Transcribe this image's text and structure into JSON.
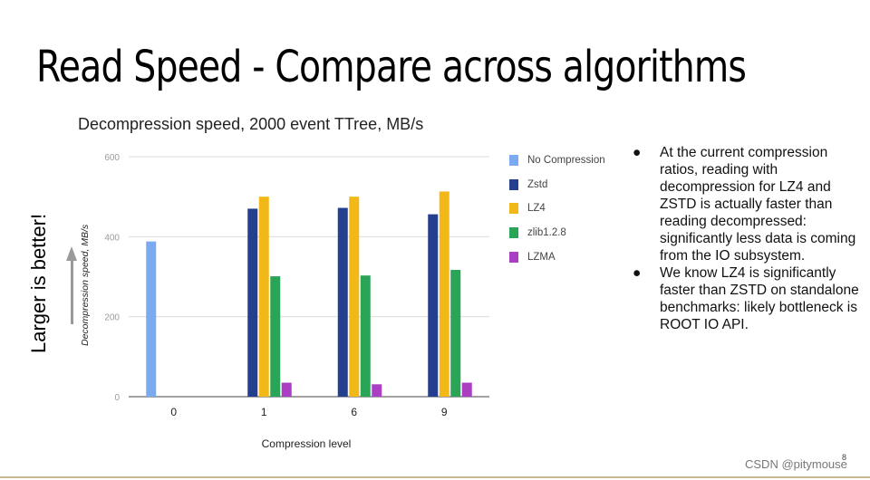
{
  "slide": {
    "title": "Read Speed - Compare across algorithms",
    "side_label": "Larger is better!",
    "watermark": "CSDN @pitymouse",
    "page_number": "8"
  },
  "notes": [
    {
      "bullet": "●",
      "text": "At the current compression ratios, reading with decompression for LZ4 and ZSTD is actually faster than reading decompressed: significantly less data is coming from the IO subsystem."
    },
    {
      "bullet": "●",
      "text": "We know LZ4 is significantly faster than ZSTD on standalone benchmarks: likely bottleneck is ROOT IO API."
    }
  ],
  "chart_data": {
    "type": "bar",
    "title": "Decompression speed, 2000 event TTree, MB/s",
    "xlabel": "Compression level",
    "ylabel": "Decompression speed, MB/s",
    "ylim": [
      0,
      600
    ],
    "yticks": [
      "0",
      "200",
      "400",
      "600"
    ],
    "grid": true,
    "legend_position": "right",
    "categories": [
      "0",
      "1",
      "6",
      "9"
    ],
    "series": [
      {
        "name": "No Compression",
        "color": "#7baaf0",
        "values": [
          388,
          null,
          null,
          null
        ]
      },
      {
        "name": "Zstd",
        "color": "#253f8f",
        "values": [
          null,
          470,
          472,
          456
        ]
      },
      {
        "name": "LZ4",
        "color": "#f2b818",
        "values": [
          null,
          500,
          500,
          513
        ]
      },
      {
        "name": "zlib1.2.8",
        "color": "#2aa457",
        "values": [
          null,
          301,
          303,
          317
        ]
      },
      {
        "name": "LZMA",
        "color": "#ab3fc4",
        "values": [
          null,
          35,
          31,
          35
        ]
      }
    ]
  }
}
